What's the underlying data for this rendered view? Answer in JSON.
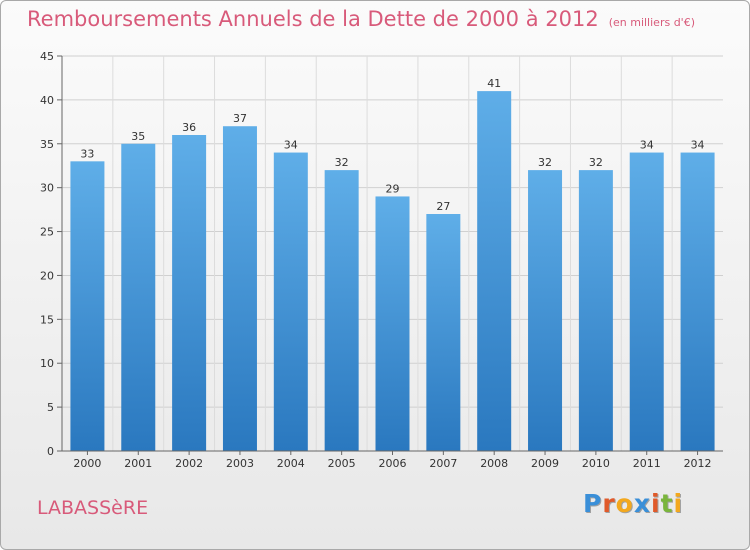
{
  "title": "Remboursements Annuels de la Dette de 2000 à 2012",
  "subtitle": "(en milliers d'€)",
  "commune": "LABASSèRE",
  "logo": {
    "letters": [
      "P",
      "r",
      "o",
      "x",
      "i",
      "t",
      "i"
    ],
    "colors": [
      "#3a8fd8",
      "#e05a2a",
      "#f3a81e",
      "#3a8fd8",
      "#e05a2a",
      "#7ab53c",
      "#f3a81e"
    ]
  },
  "colors": {
    "bar_light": "#5faee8",
    "bar_dark": "#2a78bf",
    "title": "#d85a7a"
  },
  "chart_data": {
    "type": "bar",
    "title": "Remboursements Annuels de la Dette de 2000 à 2012",
    "categories": [
      "2000",
      "2001",
      "2002",
      "2003",
      "2004",
      "2005",
      "2006",
      "2007",
      "2008",
      "2009",
      "2010",
      "2011",
      "2012"
    ],
    "values": [
      33,
      35,
      36,
      37,
      34,
      32,
      29,
      27,
      41,
      32,
      32,
      34,
      34
    ],
    "ylim": [
      0,
      45
    ],
    "yticks": [
      0,
      5,
      10,
      15,
      20,
      25,
      30,
      35,
      40,
      45
    ],
    "grid": true,
    "data_labels": true
  }
}
